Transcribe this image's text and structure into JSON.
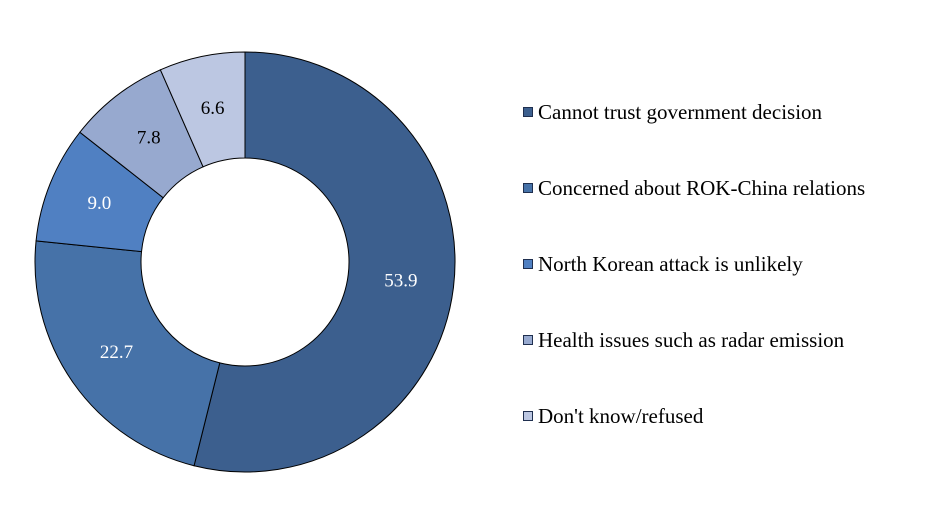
{
  "chart_data": {
    "type": "pie",
    "subtype": "donut",
    "title": "",
    "categories": [
      "Cannot trust government decision",
      "Concerned about ROK-China relations",
      "North Korean attack is unlikely",
      "Health issues such as radar emission",
      "Don't know/refused"
    ],
    "values": [
      53.9,
      22.7,
      9.0,
      7.8,
      6.6
    ],
    "value_labels": [
      "53.9",
      "22.7",
      "9.0",
      "7.8",
      "6.6"
    ],
    "colors": [
      "#3c5f8e",
      "#4672a8",
      "#5080c2",
      "#97a9cf",
      "#bcc7e2"
    ],
    "label_colors": [
      "#ffffff",
      "#ffffff",
      "#ffffff",
      "#000000",
      "#000000"
    ],
    "start_angle_deg": 0,
    "direction": "clockwise",
    "legend_position": "right"
  }
}
